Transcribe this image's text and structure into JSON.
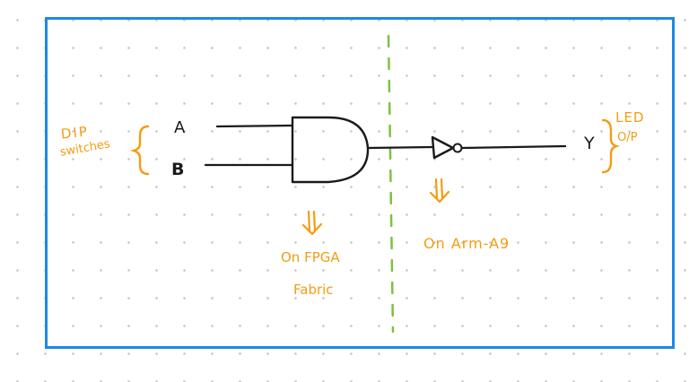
{
  "signals": {
    "input_a": "A",
    "input_b": "B",
    "output_y": "Y"
  },
  "annotations": {
    "dip_line1": "DIP",
    "dip_line2": "switches",
    "led_line1": "LED",
    "led_line2": "O/P",
    "fpga_line1": "On FPGA",
    "fpga_line2": "Fabric",
    "arm_label": "On Arm-A9"
  },
  "gates": [
    "AND",
    "NOT"
  ],
  "colors": {
    "frame": "#1e88e5",
    "ink": "#1a1a1a",
    "annotation": "#f39c12",
    "divider": "#7cc242",
    "grid_dot": "#c9c9c9"
  }
}
